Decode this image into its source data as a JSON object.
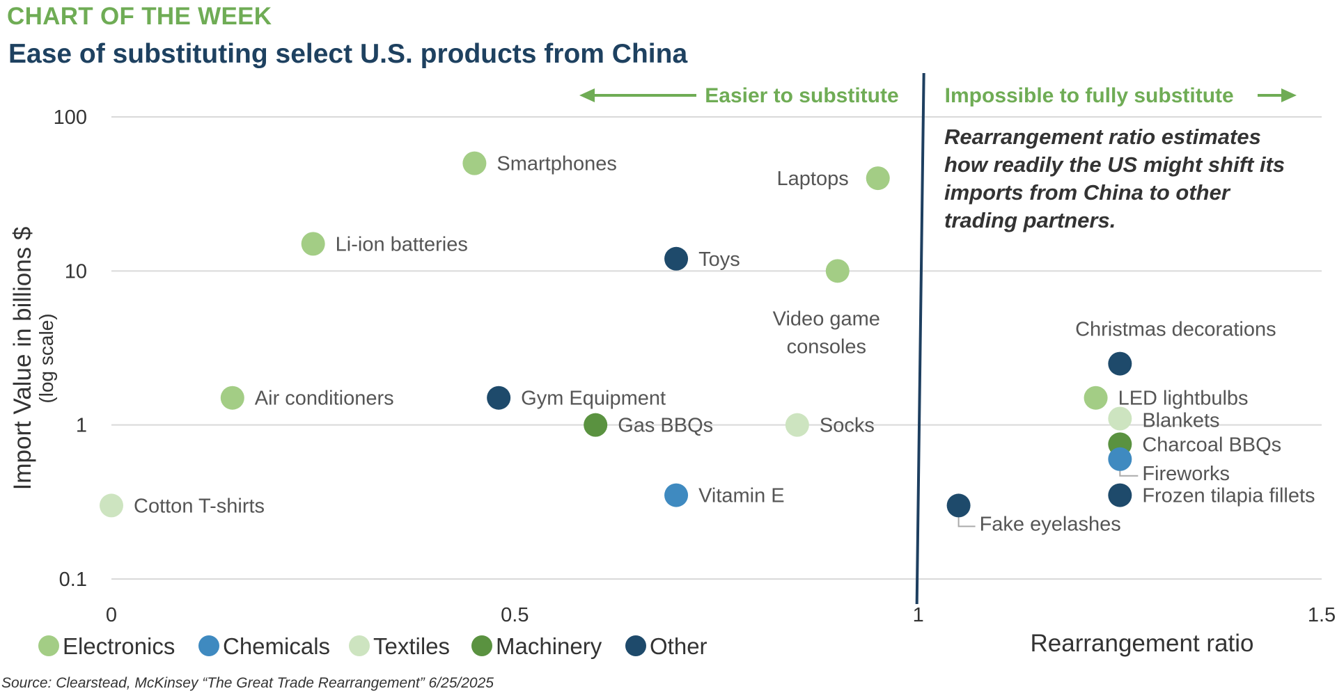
{
  "header": {
    "kicker": "CHART OF THE WEEK",
    "title": "Ease of substituting select U.S. products from China"
  },
  "source": "Source: Clearstead, McKinsey “The Great Trade Rearrangement” 6/25/2025",
  "colors": {
    "Electronics": "#a3cd85",
    "Chemicals": "#3f8ac0",
    "Textiles": "#cde4c0",
    "Machinery": "#5a9240",
    "Other": "#1e4a6b",
    "divider": "#1e3f60",
    "accent": "#6fac55",
    "gridline": "#d9d9d9"
  },
  "chart_data": {
    "type": "scatter",
    "title": "Ease of substituting select U.S. products from China",
    "xlabel": "Rearrangement ratio",
    "ylabel": "Import Value in billions $",
    "ylabel_sub": "(log scale)",
    "xlim": [
      0,
      1.5
    ],
    "ylim": [
      0.1,
      100
    ],
    "y_scale": "log",
    "x_ticks": [
      {
        "value": 0,
        "label": "0"
      },
      {
        "value": 0.5,
        "label": "0.5"
      },
      {
        "value": 1,
        "label": "1"
      },
      {
        "value": 1.5,
        "label": "1.5"
      }
    ],
    "y_ticks": [
      {
        "value": 0.1,
        "label": "0.1"
      },
      {
        "value": 1,
        "label": "1"
      },
      {
        "value": 10,
        "label": "10"
      },
      {
        "value": 100,
        "label": "100"
      }
    ],
    "grid": true,
    "legend_position": "bottom-left",
    "legend": [
      "Electronics",
      "Chemicals",
      "Textiles",
      "Machinery",
      "Other"
    ],
    "threshold": {
      "x": 1,
      "left_label": "Easier to substitute",
      "right_label": "Impossible to fully substitute"
    },
    "note_lines": [
      "Rearrangement ratio estimates",
      "how readily the US might shift its",
      "imports from China to other",
      "trading partners."
    ],
    "points": [
      {
        "label": [
          "Smartphones"
        ],
        "category": "Electronics",
        "x": 0.45,
        "y": 50
      },
      {
        "label": [
          "Laptops"
        ],
        "category": "Electronics",
        "x": 0.95,
        "y": 40
      },
      {
        "label": [
          "Li-ion batteries"
        ],
        "category": "Electronics",
        "x": 0.25,
        "y": 15
      },
      {
        "label": [
          "Toys"
        ],
        "category": "Other",
        "x": 0.7,
        "y": 12
      },
      {
        "label": [
          "Video game",
          "consoles"
        ],
        "category": "Electronics",
        "x": 0.9,
        "y": 10
      },
      {
        "label": [
          "Air conditioners"
        ],
        "category": "Electronics",
        "x": 0.15,
        "y": 1.5
      },
      {
        "label": [
          "Gym Equipment"
        ],
        "category": "Other",
        "x": 0.48,
        "y": 1.5
      },
      {
        "label": [
          "Gas BBQs"
        ],
        "category": "Machinery",
        "x": 0.6,
        "y": 1
      },
      {
        "label": [
          "Socks"
        ],
        "category": "Textiles",
        "x": 0.85,
        "y": 1
      },
      {
        "label": [
          "Vitamin E"
        ],
        "category": "Chemicals",
        "x": 0.7,
        "y": 0.35
      },
      {
        "label": [
          "Cotton T-shirts"
        ],
        "category": "Textiles",
        "x": 0,
        "y": 0.3
      },
      {
        "label": [
          "Christmas decorations"
        ],
        "category": "Other",
        "x": 1.25,
        "y": 2.5
      },
      {
        "label": [
          "LED lightbulbs"
        ],
        "category": "Electronics",
        "x": 1.22,
        "y": 1.5
      },
      {
        "label": [
          "Blankets"
        ],
        "category": "Textiles",
        "x": 1.25,
        "y": 1.1
      },
      {
        "label": [
          "Charcoal BBQs"
        ],
        "category": "Machinery",
        "x": 1.25,
        "y": 0.75
      },
      {
        "label": [
          "Fireworks"
        ],
        "category": "Chemicals",
        "x": 1.25,
        "y": 0.6
      },
      {
        "label": [
          "Frozen tilapia fillets"
        ],
        "category": "Other",
        "x": 1.25,
        "y": 0.35
      },
      {
        "label": [
          "Fake eyelashes"
        ],
        "category": "Other",
        "x": 1.05,
        "y": 0.3
      }
    ]
  }
}
